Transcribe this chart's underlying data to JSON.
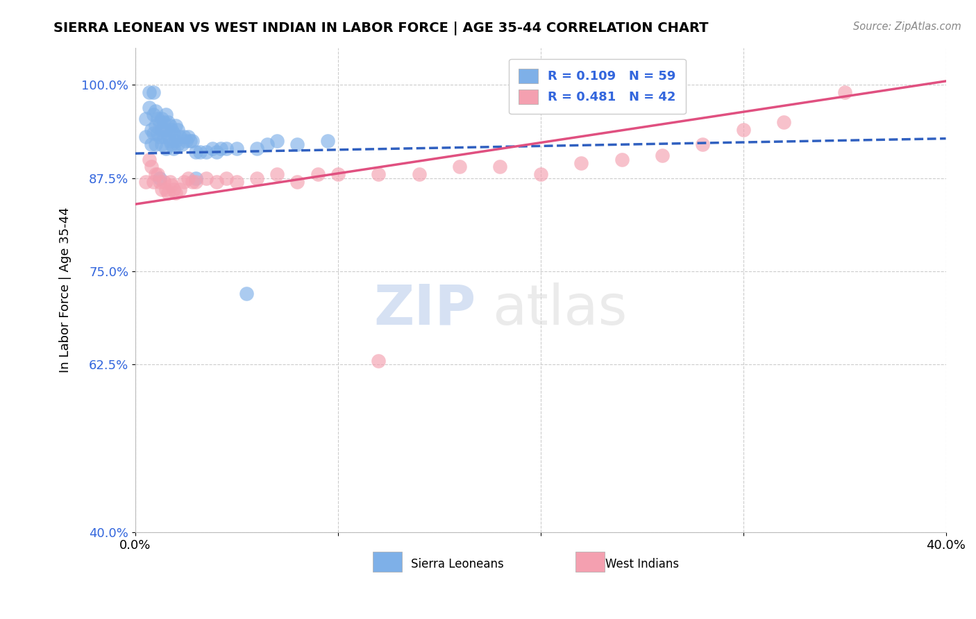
{
  "title": "SIERRA LEONEAN VS WEST INDIAN IN LABOR FORCE | AGE 35-44 CORRELATION CHART",
  "source": "Source: ZipAtlas.com",
  "ylabel": "In Labor Force | Age 35-44",
  "xlim": [
    0.0,
    0.4
  ],
  "ylim": [
    0.4,
    1.05
  ],
  "xticks": [
    0.0,
    0.1,
    0.2,
    0.3,
    0.4
  ],
  "xtick_labels": [
    "0.0%",
    "",
    "",
    "",
    "40.0%"
  ],
  "yticks": [
    0.4,
    0.625,
    0.75,
    0.875,
    1.0
  ],
  "ytick_labels": [
    "40.0%",
    "62.5%",
    "75.0%",
    "87.5%",
    "100.0%"
  ],
  "blue_R": 0.109,
  "blue_N": 59,
  "pink_R": 0.481,
  "pink_N": 42,
  "blue_color": "#7EB0E8",
  "pink_color": "#F4A0B0",
  "blue_line_color": "#3060C0",
  "pink_line_color": "#E05080",
  "legend_label_blue": "Sierra Leoneans",
  "legend_label_pink": "West Indians",
  "watermark_zip": "ZIP",
  "watermark_atlas": "atlas",
  "blue_scatter_x": [
    0.005,
    0.005,
    0.007,
    0.008,
    0.008,
    0.009,
    0.009,
    0.01,
    0.01,
    0.01,
    0.011,
    0.011,
    0.012,
    0.012,
    0.013,
    0.013,
    0.013,
    0.014,
    0.014,
    0.015,
    0.015,
    0.015,
    0.016,
    0.016,
    0.017,
    0.017,
    0.018,
    0.018,
    0.019,
    0.019,
    0.02,
    0.02,
    0.021,
    0.021,
    0.022,
    0.023,
    0.024,
    0.025,
    0.026,
    0.027,
    0.028,
    0.03,
    0.032,
    0.035,
    0.038,
    0.04,
    0.042,
    0.045,
    0.05,
    0.055,
    0.06,
    0.065,
    0.07,
    0.08,
    0.095,
    0.007,
    0.009,
    0.012,
    0.03
  ],
  "blue_scatter_y": [
    0.955,
    0.93,
    0.97,
    0.94,
    0.92,
    0.96,
    0.935,
    0.965,
    0.945,
    0.92,
    0.955,
    0.935,
    0.95,
    0.93,
    0.955,
    0.94,
    0.92,
    0.95,
    0.93,
    0.96,
    0.94,
    0.915,
    0.95,
    0.93,
    0.945,
    0.925,
    0.94,
    0.92,
    0.935,
    0.915,
    0.945,
    0.925,
    0.94,
    0.92,
    0.93,
    0.92,
    0.93,
    0.925,
    0.93,
    0.925,
    0.925,
    0.91,
    0.91,
    0.91,
    0.915,
    0.91,
    0.915,
    0.915,
    0.915,
    0.72,
    0.915,
    0.92,
    0.925,
    0.92,
    0.925,
    0.99,
    0.99,
    0.875,
    0.875
  ],
  "pink_scatter_x": [
    0.005,
    0.007,
    0.008,
    0.009,
    0.01,
    0.011,
    0.012,
    0.013,
    0.014,
    0.015,
    0.016,
    0.017,
    0.018,
    0.019,
    0.02,
    0.022,
    0.024,
    0.026,
    0.028,
    0.03,
    0.035,
    0.04,
    0.045,
    0.05,
    0.06,
    0.07,
    0.08,
    0.09,
    0.1,
    0.12,
    0.14,
    0.16,
    0.18,
    0.2,
    0.22,
    0.24,
    0.26,
    0.28,
    0.3,
    0.32,
    0.12,
    0.35
  ],
  "pink_scatter_y": [
    0.87,
    0.9,
    0.89,
    0.87,
    0.88,
    0.88,
    0.87,
    0.86,
    0.87,
    0.86,
    0.855,
    0.87,
    0.865,
    0.86,
    0.855,
    0.86,
    0.87,
    0.875,
    0.87,
    0.87,
    0.875,
    0.87,
    0.875,
    0.87,
    0.875,
    0.88,
    0.87,
    0.88,
    0.88,
    0.88,
    0.88,
    0.89,
    0.89,
    0.88,
    0.895,
    0.9,
    0.905,
    0.92,
    0.94,
    0.95,
    0.63,
    0.99
  ],
  "background_color": "#FFFFFF",
  "grid_color": "#CCCCCC"
}
